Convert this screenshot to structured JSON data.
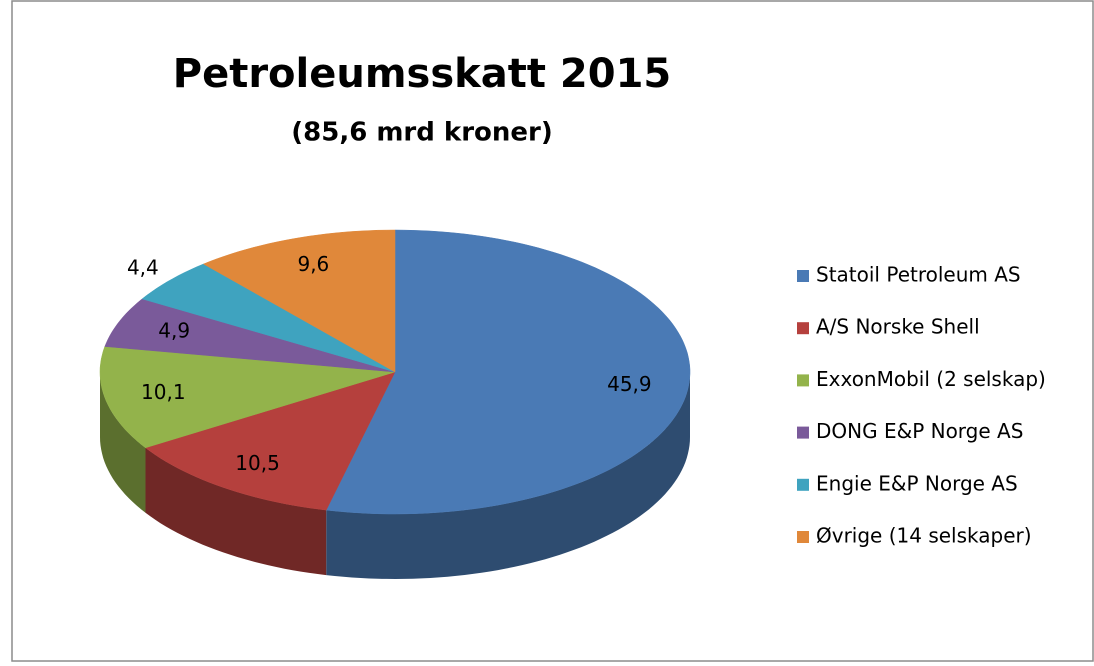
{
  "chart_data": {
    "type": "pie3d",
    "title": "Petroleumsskatt 2015",
    "subtitle": "(85,6 mrd kroner)",
    "categories": [
      "Statoil Petroleum AS",
      "A/S Norske Shell",
      "ExxonMobil (2 selskap)",
      "DONG E&P Norge AS",
      "Engie E&P Norge AS",
      "Øvrige (14 selskaper)"
    ],
    "values": [
      45.9,
      10.5,
      10.1,
      4.9,
      4.4,
      9.6
    ],
    "value_labels": [
      "45,9",
      "10,5",
      "10,1",
      "4,9",
      "4,4",
      "9,6"
    ],
    "colors": [
      "#4a7ab5",
      "#b5403d",
      "#93b34b",
      "#7a5a9a",
      "#3fa3bf",
      "#e0883a"
    ],
    "legend": "right"
  }
}
